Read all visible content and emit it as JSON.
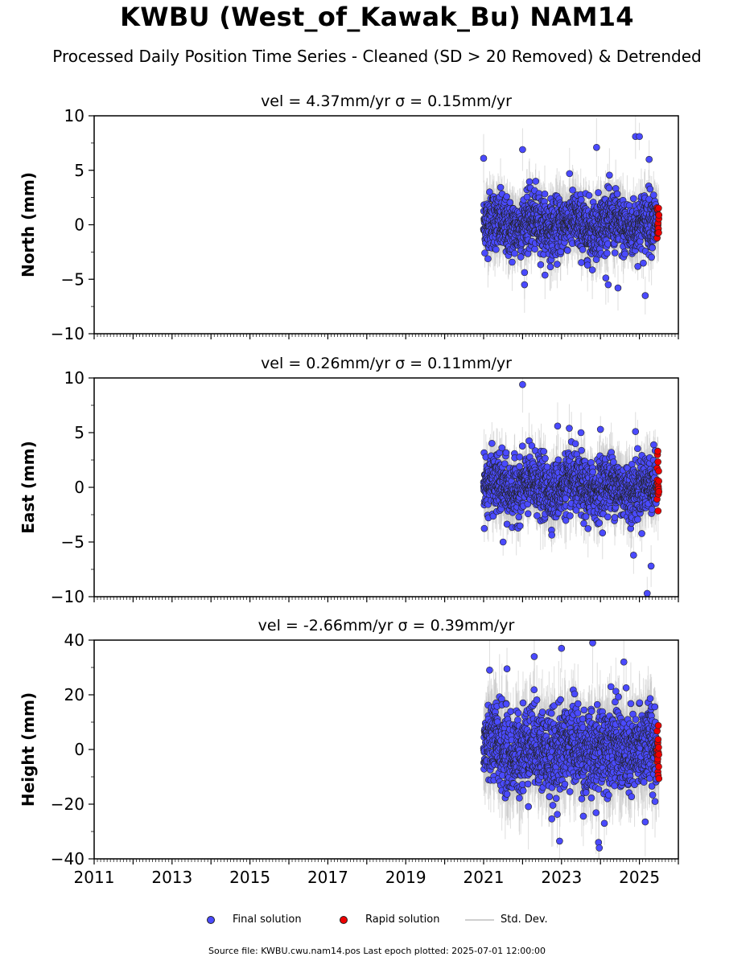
{
  "title": "KWBU (West_of_Kawak_Bu) NAM14",
  "subtitle": "Processed Daily Position Time Series - Cleaned (SD > 20 Removed) & Detrended",
  "legend": {
    "final": "Final solution",
    "rapid": "Rapid solution",
    "stddev": "Std. Dev."
  },
  "source": "Source file: KWBU.cwu.nam14.pos  Last epoch plotted: 2025-07-01 12:00:00",
  "colors": {
    "final": "#4a4aff",
    "rapid": "#ee0000",
    "stddev": "#c8c8c8"
  },
  "chart_data": [
    {
      "type": "scatter",
      "title": "vel = 4.37mm/yr   σ = 0.15mm/yr",
      "ylabel": "North (mm)",
      "ylim": [
        -10,
        10
      ],
      "yticks": [
        10,
        5,
        0,
        -5,
        -10
      ],
      "ytick_labels": [
        "10",
        "5",
        "0",
        "−5",
        "−10"
      ],
      "xlim": [
        2011,
        2026
      ],
      "data_start": 2021.0,
      "data_end": 2025.5,
      "rapid_start": 2025.45,
      "velocity_mm_per_yr": 4.37,
      "sigma_mm_per_yr": 0.15,
      "scatter_sd_mm": 1.3,
      "outliers": [
        [
          2021.0,
          6.1
        ],
        [
          2022.0,
          6.9
        ],
        [
          2023.9,
          7.1
        ],
        [
          2024.9,
          8.1
        ],
        [
          2025.0,
          8.1
        ],
        [
          2025.25,
          6.0
        ],
        [
          2025.15,
          -6.5
        ],
        [
          2022.05,
          -5.5
        ],
        [
          2024.2,
          -5.5
        ],
        [
          2024.45,
          -5.8
        ]
      ]
    },
    {
      "type": "scatter",
      "title": "vel = 0.26mm/yr   σ = 0.11mm/yr",
      "ylabel": "East (mm)",
      "ylim": [
        -10,
        10
      ],
      "yticks": [
        10,
        5,
        0,
        -5,
        -10
      ],
      "ytick_labels": [
        "10",
        "5",
        "0",
        "−5",
        "−10"
      ],
      "xlim": [
        2011,
        2026
      ],
      "data_start": 2021.0,
      "data_end": 2025.5,
      "rapid_start": 2025.45,
      "velocity_mm_per_yr": 0.26,
      "sigma_mm_per_yr": 0.11,
      "scatter_sd_mm": 1.3,
      "outliers": [
        [
          2022.0,
          9.4
        ],
        [
          2022.9,
          5.6
        ],
        [
          2023.2,
          5.4
        ],
        [
          2023.5,
          5.0
        ],
        [
          2024.0,
          5.3
        ],
        [
          2024.9,
          5.1
        ],
        [
          2025.2,
          -9.7
        ],
        [
          2025.3,
          -7.2
        ],
        [
          2024.85,
          -6.2
        ],
        [
          2021.5,
          -5.0
        ]
      ]
    },
    {
      "type": "scatter",
      "title": "vel = -2.66mm/yr   σ = 0.39mm/yr",
      "ylabel": "Height (mm)",
      "ylim": [
        -40,
        40
      ],
      "yticks": [
        40,
        20,
        0,
        -20,
        -40
      ],
      "ytick_labels": [
        "40",
        "20",
        "0",
        "−20",
        "−40"
      ],
      "xlim": [
        2011,
        2026
      ],
      "xticks": [
        2011,
        2013,
        2015,
        2017,
        2019,
        2021,
        2023,
        2025
      ],
      "data_start": 2021.0,
      "data_end": 2025.5,
      "rapid_start": 2025.45,
      "velocity_mm_per_yr": -2.66,
      "sigma_mm_per_yr": 0.39,
      "scatter_sd_mm": 7.5,
      "outliers": [
        [
          2023.8,
          39.0
        ],
        [
          2023.0,
          37.0
        ],
        [
          2022.95,
          -33.5
        ],
        [
          2023.95,
          -34.0
        ],
        [
          2023.97,
          -36.0
        ],
        [
          2024.1,
          -27.0
        ],
        [
          2025.15,
          -26.5
        ],
        [
          2021.6,
          29.5
        ],
        [
          2022.3,
          34.0
        ],
        [
          2024.6,
          32.0
        ]
      ]
    }
  ]
}
